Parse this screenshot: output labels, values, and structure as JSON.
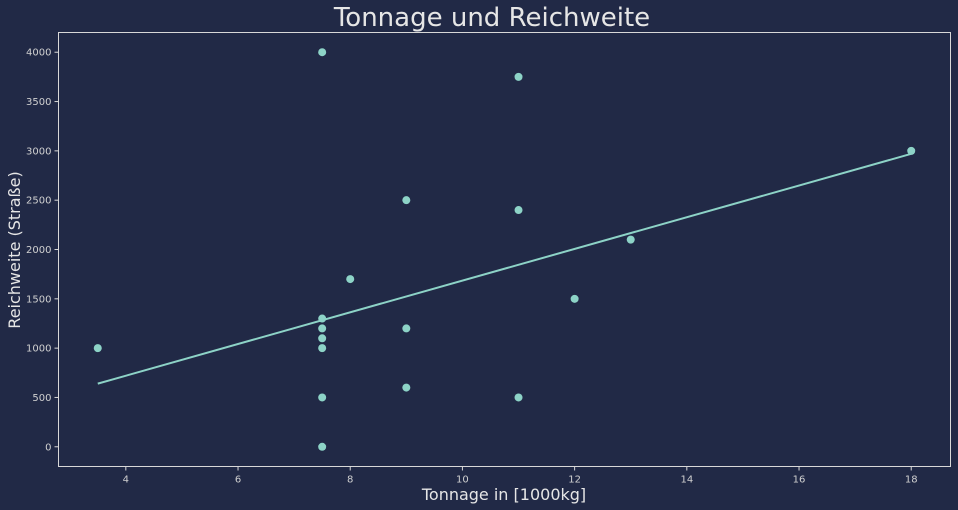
{
  "chart_data": {
    "type": "scatter",
    "title": "Tonnage und Reichweite",
    "xlabel": "Tonnage in [1000kg]",
    "ylabel": "Reichweite (Straße)",
    "xlim": [
      2.8,
      18.7
    ],
    "ylim": [
      -200,
      4200
    ],
    "xticks": [
      4,
      6,
      8,
      10,
      12,
      14,
      16,
      18
    ],
    "yticks": [
      0,
      500,
      1000,
      1500,
      2000,
      2500,
      3000,
      3500,
      4000
    ],
    "grid": false,
    "colors": {
      "background": "#212946",
      "points": "#8dd3c7",
      "trend_line": "#8dd3c7",
      "frame": "#d8d8d8"
    },
    "points": [
      {
        "x": 3.5,
        "y": 1000
      },
      {
        "x": 7.5,
        "y": 4000
      },
      {
        "x": 7.5,
        "y": 1300
      },
      {
        "x": 7.5,
        "y": 1200
      },
      {
        "x": 7.5,
        "y": 1100
      },
      {
        "x": 7.5,
        "y": 1000
      },
      {
        "x": 7.5,
        "y": 500
      },
      {
        "x": 7.5,
        "y": 0
      },
      {
        "x": 8,
        "y": 1700
      },
      {
        "x": 9,
        "y": 2500
      },
      {
        "x": 9,
        "y": 1200
      },
      {
        "x": 9,
        "y": 600
      },
      {
        "x": 11,
        "y": 3750
      },
      {
        "x": 11,
        "y": 2400
      },
      {
        "x": 11,
        "y": 500
      },
      {
        "x": 12,
        "y": 1500
      },
      {
        "x": 13,
        "y": 2100
      },
      {
        "x": 18,
        "y": 3000
      }
    ],
    "trend_line": {
      "x": [
        3.5,
        18
      ],
      "y": [
        640,
        2970
      ]
    }
  }
}
